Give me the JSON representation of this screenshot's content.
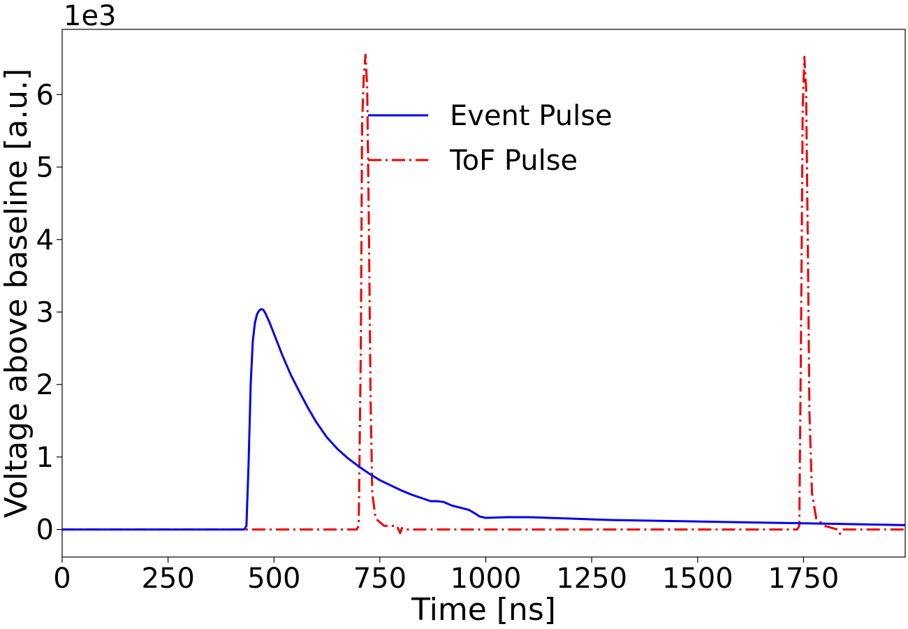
{
  "chart_data": {
    "type": "line",
    "title": "",
    "xlabel": "Time [ns]",
    "ylabel": "Voltage above baseline [a.u.]",
    "y_offset_label": "1e3",
    "xlim": [
      0,
      1990
    ],
    "ylim": [
      -0.38,
      6.9
    ],
    "x_ticks": [
      0,
      250,
      500,
      750,
      1000,
      1250,
      1500,
      1750
    ],
    "x_tick_labels": [
      "0",
      "250",
      "500",
      "750",
      "1000",
      "1250",
      "1500",
      "1750"
    ],
    "y_ticks": [
      0,
      1,
      2,
      3,
      4,
      5,
      6
    ],
    "y_tick_labels": [
      "0",
      "1",
      "2",
      "3",
      "4",
      "5",
      "6"
    ],
    "grid": false,
    "legend_position": "upper-center",
    "series": [
      {
        "name": "Event Pulse",
        "color": "#0000ee",
        "style": "solid",
        "x": [
          0,
          100,
          200,
          300,
          400,
          430,
          435,
          440,
          445,
          450,
          455,
          460,
          465,
          470,
          475,
          480,
          490,
          500,
          520,
          540,
          560,
          580,
          600,
          625,
          650,
          675,
          700,
          725,
          750,
          775,
          800,
          825,
          850,
          870,
          885,
          900,
          920,
          940,
          960,
          975,
          985,
          1000,
          1050,
          1100,
          1150,
          1200,
          1250,
          1300,
          1400,
          1500,
          1600,
          1700,
          1800,
          1900,
          1990
        ],
        "y": [
          0.0,
          0.0,
          0.0,
          0.0,
          0.0,
          0.0,
          0.05,
          0.9,
          2.0,
          2.6,
          2.85,
          2.97,
          3.02,
          3.04,
          3.03,
          2.98,
          2.85,
          2.7,
          2.4,
          2.13,
          1.9,
          1.68,
          1.48,
          1.27,
          1.11,
          0.98,
          0.87,
          0.77,
          0.68,
          0.61,
          0.54,
          0.48,
          0.43,
          0.39,
          0.39,
          0.38,
          0.33,
          0.3,
          0.27,
          0.22,
          0.18,
          0.16,
          0.17,
          0.17,
          0.16,
          0.15,
          0.14,
          0.13,
          0.12,
          0.11,
          0.1,
          0.09,
          0.08,
          0.07,
          0.06
        ]
      },
      {
        "name": "ToF Pulse",
        "color": "#ee0000",
        "style": "dashdot",
        "x": [
          0,
          200,
          400,
          600,
          695,
          700,
          705,
          708,
          712,
          716,
          720,
          724,
          728,
          732,
          740,
          760,
          780,
          790,
          798,
          802,
          806,
          820,
          900,
          1100,
          1300,
          1500,
          1700,
          1735,
          1740,
          1744,
          1748,
          1752,
          1756,
          1760,
          1764,
          1770,
          1780,
          1800,
          1830,
          1836,
          1842,
          1850,
          1900,
          1990
        ],
        "y": [
          0.0,
          0.0,
          0.0,
          0.0,
          0.0,
          0.05,
          2.5,
          5.6,
          6.25,
          6.55,
          6.1,
          4.2,
          1.8,
          0.5,
          0.15,
          0.05,
          0.05,
          0.05,
          -0.05,
          0.02,
          0.0,
          0.0,
          0.0,
          0.0,
          0.0,
          0.0,
          0.0,
          0.0,
          0.05,
          2.6,
          5.8,
          6.52,
          6.1,
          4.0,
          1.6,
          0.5,
          0.15,
          0.05,
          0.0,
          -0.06,
          0.0,
          0.0,
          0.0,
          0.0
        ]
      }
    ]
  }
}
